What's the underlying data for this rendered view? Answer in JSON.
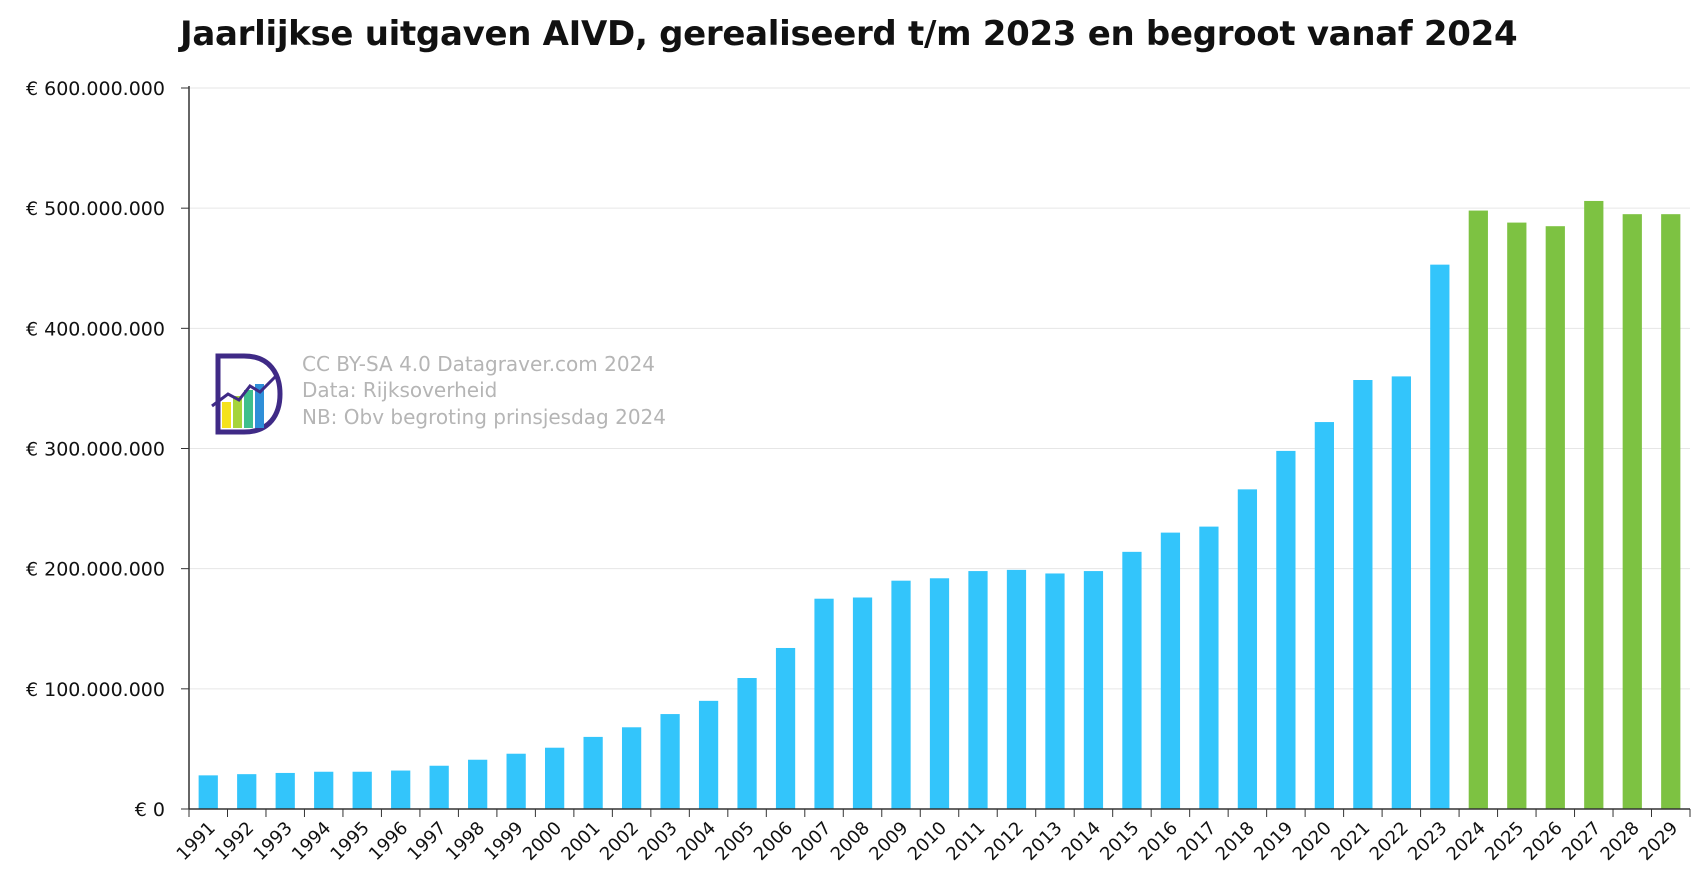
{
  "chart_data": {
    "type": "bar",
    "title": "Jaarlijkse uitgaven AIVD, gerealiseerd t/m 2023 en begroot vanaf 2024",
    "xlabel": "",
    "ylabel": "",
    "ylim": [
      0,
      600000000
    ],
    "yticks": [
      0,
      100000000,
      200000000,
      300000000,
      400000000,
      500000000,
      600000000
    ],
    "ytick_labels": [
      "€ 0",
      "€ 100.000.000",
      "€ 200.000.000",
      "€ 300.000.000",
      "€ 400.000.000",
      "€ 500.000.000",
      "€ 600.000.000"
    ],
    "grid": true,
    "categories": [
      "1991",
      "1992",
      "1993",
      "1994",
      "1995",
      "1996",
      "1997",
      "1998",
      "1999",
      "2000",
      "2001",
      "2002",
      "2003",
      "2004",
      "2005",
      "2006",
      "2007",
      "2008",
      "2009",
      "2010",
      "2011",
      "2012",
      "2013",
      "2014",
      "2015",
      "2016",
      "2017",
      "2018",
      "2019",
      "2020",
      "2021",
      "2022",
      "2023",
      "2024",
      "2025",
      "2026",
      "2027",
      "2028",
      "2029"
    ],
    "values": [
      28000000,
      29000000,
      30000000,
      31000000,
      31000000,
      32000000,
      36000000,
      41000000,
      46000000,
      51000000,
      60000000,
      68000000,
      79000000,
      90000000,
      109000000,
      134000000,
      175000000,
      176000000,
      190000000,
      192000000,
      198000000,
      199000000,
      196000000,
      198000000,
      214000000,
      230000000,
      235000000,
      266000000,
      298000000,
      322000000,
      357000000,
      360000000,
      453000000,
      498000000,
      488000000,
      485000000,
      506000000,
      495000000,
      495000000
    ],
    "bar_colors": [
      "#33c5fb",
      "#33c5fb",
      "#33c5fb",
      "#33c5fb",
      "#33c5fb",
      "#33c5fb",
      "#33c5fb",
      "#33c5fb",
      "#33c5fb",
      "#33c5fb",
      "#33c5fb",
      "#33c5fb",
      "#33c5fb",
      "#33c5fb",
      "#33c5fb",
      "#33c5fb",
      "#33c5fb",
      "#33c5fb",
      "#33c5fb",
      "#33c5fb",
      "#33c5fb",
      "#33c5fb",
      "#33c5fb",
      "#33c5fb",
      "#33c5fb",
      "#33c5fb",
      "#33c5fb",
      "#33c5fb",
      "#33c5fb",
      "#33c5fb",
      "#33c5fb",
      "#33c5fb",
      "#33c5fb",
      "#7dc242",
      "#7dc242",
      "#7dc242",
      "#7dc242",
      "#7dc242",
      "#7dc242"
    ],
    "annotations": [
      "CC BY-SA 4.0  Datagraver.com 2024",
      "Data: Rijksoverheid",
      "NB: Obv begroting prinsjesdag 2024"
    ]
  },
  "logo": {
    "icon": "datagraver-logo-icon"
  }
}
